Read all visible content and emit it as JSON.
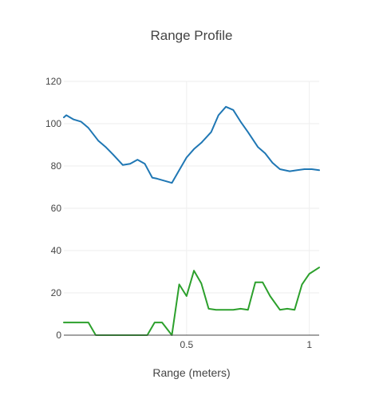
{
  "chart_data": {
    "type": "line",
    "title": "Range Profile",
    "xlabel": "Range (meters)",
    "ylabel": "",
    "xlim": [
      0.0,
      1.04
    ],
    "ylim": [
      0,
      120
    ],
    "xticks": [
      0.5,
      1
    ],
    "xtick_labels": [
      "0.5",
      "1"
    ],
    "yticks": [
      0,
      20,
      40,
      60,
      80,
      100,
      120
    ],
    "ytick_labels": [
      "0",
      "20",
      "40",
      "60",
      "80",
      "100",
      "120"
    ],
    "grid": true,
    "legend": "none",
    "series": [
      {
        "color": "#1f77b4",
        "x": [
          0.0,
          0.01,
          0.04,
          0.07,
          0.1,
          0.14,
          0.17,
          0.2,
          0.24,
          0.27,
          0.3,
          0.33,
          0.36,
          0.38,
          0.44,
          0.47,
          0.5,
          0.53,
          0.56,
          0.6,
          0.63,
          0.66,
          0.69,
          0.72,
          0.75,
          0.79,
          0.82,
          0.85,
          0.88,
          0.92,
          0.95,
          0.98,
          1.01,
          1.04
        ],
        "y": [
          103,
          104,
          102,
          101,
          98,
          92,
          89,
          85.5,
          80.5,
          81,
          83,
          81,
          74.5,
          74,
          72,
          78,
          84,
          88,
          91,
          96,
          104,
          108,
          106.5,
          101,
          96,
          89,
          86,
          81.5,
          78.5,
          77.5,
          78,
          78.5,
          78.5,
          78
        ]
      },
      {
        "color": "#2ca02c",
        "x": [
          0.0,
          0.07,
          0.1,
          0.13,
          0.2,
          0.25,
          0.31,
          0.34,
          0.37,
          0.4,
          0.44,
          0.47,
          0.5,
          0.53,
          0.56,
          0.59,
          0.62,
          0.66,
          0.69,
          0.72,
          0.75,
          0.78,
          0.81,
          0.84,
          0.88,
          0.91,
          0.94,
          0.97,
          1.0,
          1.04
        ],
        "y": [
          6,
          6,
          6,
          0,
          0,
          0,
          0,
          0,
          6,
          6,
          0,
          24,
          18.5,
          30.5,
          24.5,
          12.5,
          12,
          12,
          12,
          12.5,
          12,
          25,
          25,
          18.5,
          12,
          12.5,
          12,
          24,
          29,
          32
        ]
      }
    ]
  }
}
